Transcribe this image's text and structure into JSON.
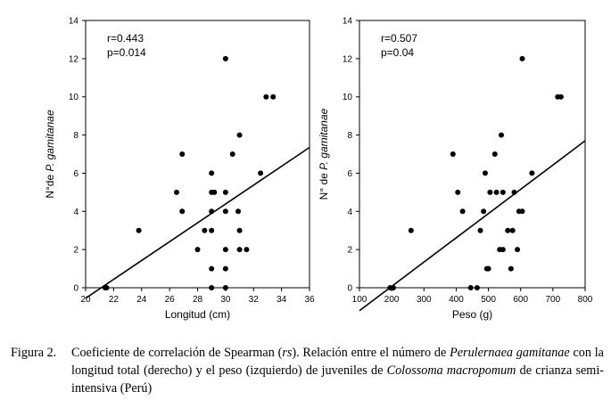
{
  "chart_data": [
    {
      "type": "scatter",
      "xlabel": "Longitud (cm)",
      "ylabel_prefix": "N°de ",
      "ylabel_italic": "P. gamitanae",
      "xlim": [
        20,
        36
      ],
      "ylim": [
        0,
        14
      ],
      "xticks": [
        "20",
        "22",
        "24",
        "26",
        "28",
        "30",
        "32",
        "34",
        "36"
      ],
      "yticks": [
        "0",
        "2",
        "4",
        "6",
        "8",
        "10",
        "12",
        "14"
      ],
      "annotations": [
        "r=0.443",
        "p=0.014"
      ],
      "trendline": [
        [
          20,
          -0.55
        ],
        [
          36,
          7.35
        ]
      ],
      "points": [
        [
          21.4,
          0
        ],
        [
          21.5,
          0
        ],
        [
          23.8,
          3
        ],
        [
          26.5,
          5
        ],
        [
          26.9,
          7
        ],
        [
          26.9,
          4
        ],
        [
          28.0,
          2
        ],
        [
          28.5,
          3
        ],
        [
          29.0,
          6
        ],
        [
          29.0,
          5
        ],
        [
          29.0,
          4
        ],
        [
          29.0,
          3
        ],
        [
          29.0,
          1
        ],
        [
          29.0,
          0
        ],
        [
          29.2,
          5
        ],
        [
          30.0,
          12
        ],
        [
          30.0,
          5
        ],
        [
          30.0,
          4
        ],
        [
          30.0,
          2
        ],
        [
          30.0,
          1
        ],
        [
          30.0,
          0
        ],
        [
          30.5,
          7
        ],
        [
          30.9,
          4
        ],
        [
          31.0,
          8
        ],
        [
          31.0,
          3
        ],
        [
          31.0,
          2
        ],
        [
          31.5,
          2
        ],
        [
          32.5,
          6
        ],
        [
          32.9,
          10
        ],
        [
          33.4,
          10
        ]
      ]
    },
    {
      "type": "scatter",
      "xlabel": "Peso (g)",
      "ylabel_prefix": "N° de ",
      "ylabel_italic": "P. gamitanae",
      "xlim": [
        100,
        800
      ],
      "ylim": [
        0,
        14
      ],
      "xticks": [
        "100",
        "200",
        "300",
        "400",
        "500",
        "600",
        "700",
        "800"
      ],
      "yticks": [
        "0",
        "2",
        "4",
        "6",
        "8",
        "10",
        "12",
        "14"
      ],
      "annotations": [
        "r=0.507",
        "p=0.04"
      ],
      "trendline": [
        [
          100,
          -1.2
        ],
        [
          800,
          7.7
        ]
      ],
      "points": [
        [
          195,
          0
        ],
        [
          205,
          0
        ],
        [
          260,
          3
        ],
        [
          390,
          7
        ],
        [
          405,
          5
        ],
        [
          420,
          4
        ],
        [
          445,
          0
        ],
        [
          465,
          0
        ],
        [
          475,
          3
        ],
        [
          485,
          4
        ],
        [
          490,
          6
        ],
        [
          495,
          1
        ],
        [
          500,
          1
        ],
        [
          505,
          5
        ],
        [
          520,
          7
        ],
        [
          525,
          5
        ],
        [
          535,
          2
        ],
        [
          540,
          8
        ],
        [
          545,
          5
        ],
        [
          545,
          2
        ],
        [
          560,
          3
        ],
        [
          570,
          1
        ],
        [
          575,
          3
        ],
        [
          580,
          5
        ],
        [
          590,
          2
        ],
        [
          595,
          4
        ],
        [
          605,
          12
        ],
        [
          605,
          4
        ],
        [
          635,
          6
        ],
        [
          715,
          10
        ],
        [
          725,
          10
        ]
      ]
    }
  ],
  "caption": {
    "label": "Figura 2.",
    "p1": "Coeficiente de correlación de Spearman (",
    "rs": "rs",
    "p2": "). Relación entre el número de ",
    "perulernaea": "Perulernaea",
    "gamitanae": "gamitanae",
    "p3": " con la longitud total (derecho) y el peso (izquierdo) de juveniles de ",
    "colossoma": "Colossoma macropomum",
    "p4": " de crianza semi-intensiva (Perú)"
  }
}
